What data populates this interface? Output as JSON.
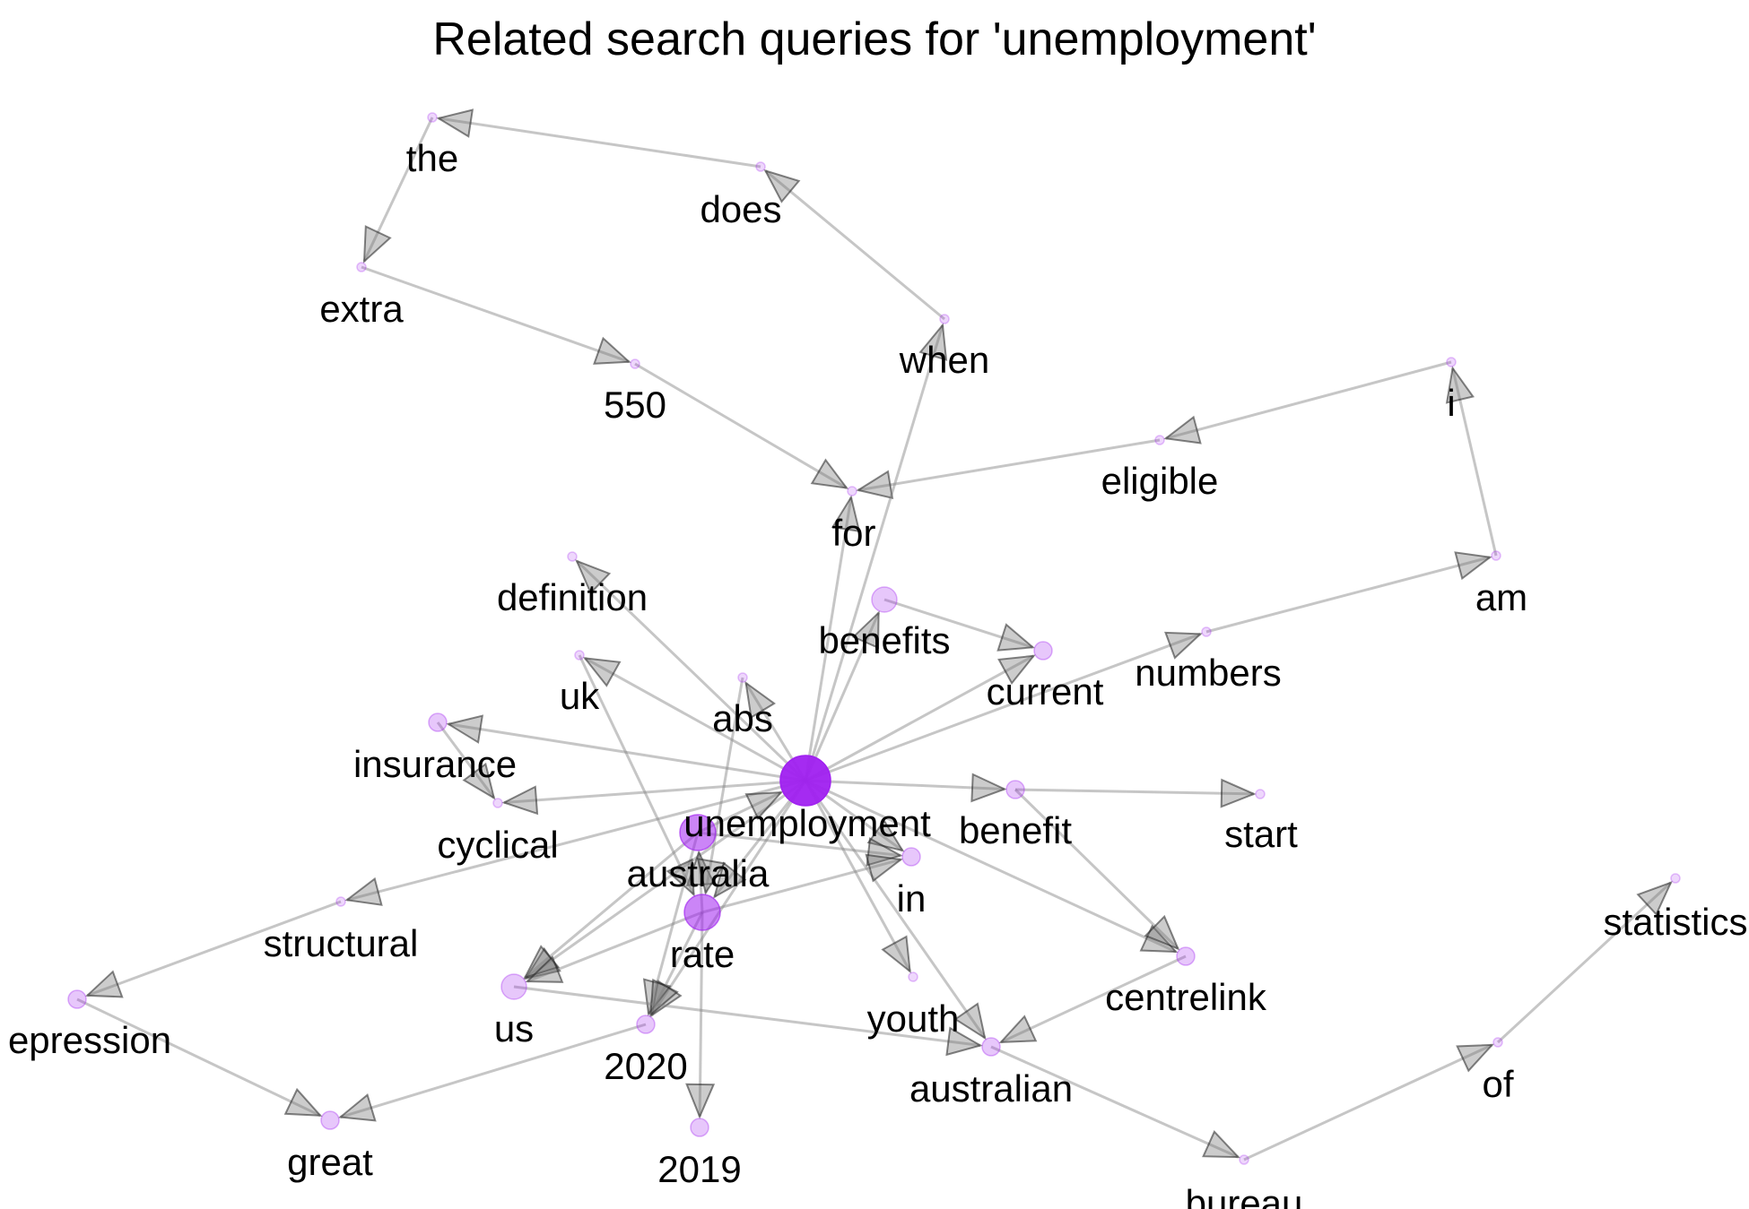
{
  "title": "Related search queries for 'unemployment'",
  "colors": {
    "node": "#a020f0",
    "edge": "#808080",
    "arrow": "#7a7a7a",
    "label": "#000000"
  },
  "nodes": [
    {
      "id": "the",
      "label": "the",
      "weight": 1
    },
    {
      "id": "does",
      "label": "does",
      "weight": 1
    },
    {
      "id": "extra",
      "label": "extra",
      "weight": 1
    },
    {
      "id": "when",
      "label": "when",
      "weight": 1
    },
    {
      "id": "550",
      "label": "550",
      "weight": 1
    },
    {
      "id": "i",
      "label": "i",
      "weight": 1
    },
    {
      "id": "eligible",
      "label": "eligible",
      "weight": 1
    },
    {
      "id": "for",
      "label": "for",
      "weight": 1
    },
    {
      "id": "am",
      "label": "am",
      "weight": 1
    },
    {
      "id": "definition",
      "label": "definition",
      "weight": 1
    },
    {
      "id": "benefits",
      "label": "benefits",
      "weight": 3
    },
    {
      "id": "current",
      "label": "current",
      "weight": 2
    },
    {
      "id": "numbers",
      "label": "numbers",
      "weight": 1
    },
    {
      "id": "uk",
      "label": "uk",
      "weight": 1
    },
    {
      "id": "abs",
      "label": "abs",
      "weight": 1
    },
    {
      "id": "insurance",
      "label": "insurance",
      "weight": 2
    },
    {
      "id": "unemployment",
      "label": "unemployment",
      "weight": 10
    },
    {
      "id": "benefit",
      "label": "benefit",
      "weight": 2
    },
    {
      "id": "start",
      "label": "start",
      "weight": 1
    },
    {
      "id": "cyclical",
      "label": "cyclical",
      "weight": 1
    },
    {
      "id": "australia",
      "label": "australia",
      "weight": 6
    },
    {
      "id": "in",
      "label": "in",
      "weight": 2
    },
    {
      "id": "rate",
      "label": "rate",
      "weight": 6
    },
    {
      "id": "structural",
      "label": "structural",
      "weight": 1
    },
    {
      "id": "statistics",
      "label": "statistics",
      "weight": 1
    },
    {
      "id": "centrelink",
      "label": "centrelink",
      "weight": 2
    },
    {
      "id": "us",
      "label": "us",
      "weight": 3
    },
    {
      "id": "youth",
      "label": "youth",
      "weight": 1
    },
    {
      "id": "depression",
      "label": "epression",
      "weight": 2
    },
    {
      "id": "2020",
      "label": "2020",
      "weight": 2
    },
    {
      "id": "australian",
      "label": "australian",
      "weight": 2
    },
    {
      "id": "of",
      "label": "of",
      "weight": 1
    },
    {
      "id": "great",
      "label": "great",
      "weight": 2
    },
    {
      "id": "2019",
      "label": "2019",
      "weight": 2
    },
    {
      "id": "bureau",
      "label": "bureau",
      "weight": 1
    }
  ],
  "edges": [
    [
      "does",
      "the"
    ],
    [
      "the",
      "extra"
    ],
    [
      "extra",
      "550"
    ],
    [
      "550",
      "for"
    ],
    [
      "when",
      "does"
    ],
    [
      "eligible",
      "for"
    ],
    [
      "i",
      "eligible"
    ],
    [
      "am",
      "i"
    ],
    [
      "numbers",
      "am"
    ],
    [
      "unemployment",
      "when"
    ],
    [
      "unemployment",
      "for"
    ],
    [
      "unemployment",
      "definition"
    ],
    [
      "unemployment",
      "benefits"
    ],
    [
      "unemployment",
      "current"
    ],
    [
      "unemployment",
      "numbers"
    ],
    [
      "unemployment",
      "uk"
    ],
    [
      "unemployment",
      "abs"
    ],
    [
      "unemployment",
      "insurance"
    ],
    [
      "unemployment",
      "cyclical"
    ],
    [
      "insurance",
      "cyclical"
    ],
    [
      "unemployment",
      "benefit"
    ],
    [
      "benefit",
      "start"
    ],
    [
      "unemployment",
      "in"
    ],
    [
      "unemployment",
      "rate"
    ],
    [
      "unemployment",
      "structural"
    ],
    [
      "unemployment",
      "centrelink"
    ],
    [
      "unemployment",
      "us"
    ],
    [
      "unemployment",
      "2020"
    ],
    [
      "unemployment",
      "youth"
    ],
    [
      "unemployment",
      "australian"
    ],
    [
      "benefits",
      "current"
    ],
    [
      "australia",
      "unemployment"
    ],
    [
      "australia",
      "us"
    ],
    [
      "australia",
      "2020"
    ],
    [
      "australia",
      "in"
    ],
    [
      "rate",
      "australia"
    ],
    [
      "rate",
      "us"
    ],
    [
      "rate",
      "2020"
    ],
    [
      "rate",
      "in"
    ],
    [
      "rate",
      "2019"
    ],
    [
      "uk",
      "rate"
    ],
    [
      "abs",
      "rate"
    ],
    [
      "structural",
      "depression"
    ],
    [
      "depression",
      "great"
    ],
    [
      "2020",
      "great"
    ],
    [
      "us",
      "australian"
    ],
    [
      "benefit",
      "centrelink"
    ],
    [
      "centrelink",
      "australian"
    ],
    [
      "australian",
      "bureau"
    ],
    [
      "bureau",
      "of"
    ],
    [
      "of",
      "statistics"
    ]
  ]
}
